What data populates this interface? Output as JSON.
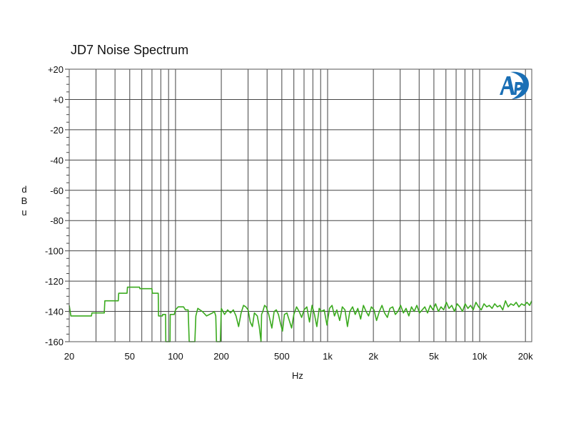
{
  "chart_data": {
    "type": "line",
    "title": "JD7 Noise Spectrum",
    "xlabel": "Hz",
    "ylabel": "dBu",
    "ylabel_chars": [
      "d",
      "B",
      "u"
    ],
    "x_scale": "log",
    "xlim": [
      20,
      22000
    ],
    "ylim": [
      -160,
      20
    ],
    "grid": true,
    "x_tick_labels": [
      {
        "value": 20,
        "label": "20"
      },
      {
        "value": 50,
        "label": "50"
      },
      {
        "value": 100,
        "label": "100"
      },
      {
        "value": 200,
        "label": "200"
      },
      {
        "value": 500,
        "label": "500"
      },
      {
        "value": 1000,
        "label": "1k"
      },
      {
        "value": 2000,
        "label": "2k"
      },
      {
        "value": 5000,
        "label": "5k"
      },
      {
        "value": 10000,
        "label": "10k"
      },
      {
        "value": 20000,
        "label": "20k"
      }
    ],
    "y_tick_labels": [
      {
        "value": 20,
        "label": "+20"
      },
      {
        "value": 0,
        "label": "+0"
      },
      {
        "value": -20,
        "label": "-20"
      },
      {
        "value": -40,
        "label": "-40"
      },
      {
        "value": -60,
        "label": "-60"
      },
      {
        "value": -80,
        "label": "-80"
      },
      {
        "value": -100,
        "label": "-100"
      },
      {
        "value": -120,
        "label": "-120"
      },
      {
        "value": -140,
        "label": "-140"
      },
      {
        "value": -160,
        "label": "-160"
      }
    ],
    "series": [
      {
        "color": "#3aaa1e",
        "points": [
          [
            20,
            -136
          ],
          [
            20.5,
            -143
          ],
          [
            28,
            -143
          ],
          [
            28.2,
            -141
          ],
          [
            34,
            -141
          ],
          [
            34.3,
            -133
          ],
          [
            42,
            -133
          ],
          [
            42.3,
            -128
          ],
          [
            48,
            -128
          ],
          [
            48.3,
            -124
          ],
          [
            58,
            -124
          ],
          [
            58.3,
            -125
          ],
          [
            70,
            -125
          ],
          [
            70.4,
            -128
          ],
          [
            77,
            -128
          ],
          [
            77.3,
            -143
          ],
          [
            82,
            -143
          ],
          [
            82.3,
            -142
          ],
          [
            86,
            -142
          ],
          [
            86.3,
            -160
          ],
          [
            92,
            -160
          ],
          [
            92.3,
            -142
          ],
          [
            98,
            -142
          ],
          [
            100,
            -139
          ],
          [
            104,
            -137
          ],
          [
            113,
            -137
          ],
          [
            116,
            -139
          ],
          [
            121,
            -139
          ],
          [
            123,
            -160
          ],
          [
            134,
            -160
          ],
          [
            136,
            -143
          ],
          [
            140,
            -138
          ],
          [
            150,
            -140
          ],
          [
            160,
            -143
          ],
          [
            175,
            -141
          ],
          [
            180,
            -140
          ],
          [
            184,
            -143
          ],
          [
            186,
            -160
          ],
          [
            197,
            -160
          ],
          [
            200,
            -138
          ],
          [
            210,
            -142
          ],
          [
            220,
            -139
          ],
          [
            230,
            -141
          ],
          [
            240,
            -139
          ],
          [
            250,
            -143
          ],
          [
            260,
            -150
          ],
          [
            270,
            -141
          ],
          [
            280,
            -136
          ],
          [
            290,
            -137
          ],
          [
            300,
            -139
          ],
          [
            310,
            -147
          ],
          [
            320,
            -150
          ],
          [
            330,
            -141
          ],
          [
            345,
            -143
          ],
          [
            355,
            -150
          ],
          [
            365,
            -160
          ],
          [
            368,
            -142
          ],
          [
            375,
            -140
          ],
          [
            385,
            -136
          ],
          [
            395,
            -137
          ],
          [
            410,
            -142
          ],
          [
            430,
            -151
          ],
          [
            445,
            -140
          ],
          [
            460,
            -139
          ],
          [
            475,
            -142
          ],
          [
            490,
            -148
          ],
          [
            505,
            -153
          ],
          [
            520,
            -142
          ],
          [
            540,
            -141
          ],
          [
            560,
            -146
          ],
          [
            580,
            -151
          ],
          [
            600,
            -142
          ],
          [
            625,
            -137
          ],
          [
            650,
            -140
          ],
          [
            675,
            -144
          ],
          [
            700,
            -139
          ],
          [
            730,
            -137
          ],
          [
            760,
            -147
          ],
          [
            790,
            -136
          ],
          [
            820,
            -142
          ],
          [
            850,
            -150
          ],
          [
            880,
            -138
          ],
          [
            910,
            -140
          ],
          [
            950,
            -139
          ],
          [
            990,
            -149
          ],
          [
            1030,
            -138
          ],
          [
            1070,
            -136
          ],
          [
            1110,
            -143
          ],
          [
            1150,
            -139
          ],
          [
            1200,
            -146
          ],
          [
            1250,
            -137
          ],
          [
            1300,
            -139
          ],
          [
            1350,
            -150
          ],
          [
            1400,
            -140
          ],
          [
            1460,
            -137
          ],
          [
            1520,
            -142
          ],
          [
            1580,
            -138
          ],
          [
            1650,
            -145
          ],
          [
            1720,
            -136
          ],
          [
            1790,
            -140
          ],
          [
            1860,
            -143
          ],
          [
            1940,
            -137
          ],
          [
            2020,
            -139
          ],
          [
            2100,
            -146
          ],
          [
            2190,
            -140
          ],
          [
            2280,
            -136
          ],
          [
            2370,
            -141
          ],
          [
            2470,
            -144
          ],
          [
            2570,
            -138
          ],
          [
            2680,
            -137
          ],
          [
            2790,
            -142
          ],
          [
            2900,
            -140
          ],
          [
            3020,
            -136
          ],
          [
            3150,
            -141
          ],
          [
            3280,
            -138
          ],
          [
            3420,
            -143
          ],
          [
            3560,
            -137
          ],
          [
            3710,
            -140
          ],
          [
            3860,
            -136
          ],
          [
            4020,
            -141
          ],
          [
            4190,
            -139
          ],
          [
            4360,
            -137
          ],
          [
            4540,
            -141
          ],
          [
            4730,
            -136
          ],
          [
            4930,
            -139
          ],
          [
            5130,
            -135
          ],
          [
            5350,
            -140
          ],
          [
            5570,
            -137
          ],
          [
            5800,
            -139
          ],
          [
            6040,
            -134
          ],
          [
            6290,
            -138
          ],
          [
            6550,
            -136
          ],
          [
            6830,
            -140
          ],
          [
            7110,
            -135
          ],
          [
            7400,
            -137
          ],
          [
            7710,
            -140
          ],
          [
            8030,
            -135
          ],
          [
            8370,
            -138
          ],
          [
            8710,
            -136
          ],
          [
            9070,
            -139
          ],
          [
            9450,
            -134
          ],
          [
            9840,
            -137
          ],
          [
            10250,
            -139
          ],
          [
            10680,
            -135
          ],
          [
            11120,
            -137
          ],
          [
            11580,
            -136
          ],
          [
            12060,
            -138
          ],
          [
            12560,
            -135
          ],
          [
            13080,
            -137
          ],
          [
            13620,
            -136
          ],
          [
            14190,
            -139
          ],
          [
            14780,
            -133
          ],
          [
            15390,
            -137
          ],
          [
            16030,
            -135
          ],
          [
            16700,
            -136
          ],
          [
            17390,
            -134
          ],
          [
            18110,
            -137
          ],
          [
            18860,
            -135
          ],
          [
            19650,
            -136
          ],
          [
            20460,
            -134
          ],
          [
            21300,
            -136
          ],
          [
            22000,
            -133
          ]
        ]
      }
    ]
  },
  "logo": {
    "text": "AP",
    "color": "#1a6fb5"
  }
}
